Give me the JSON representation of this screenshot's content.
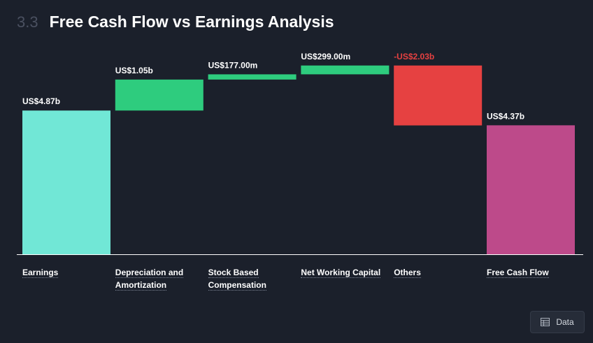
{
  "header": {
    "section_number": "3.3",
    "title": "Free Cash Flow vs Earnings Analysis"
  },
  "data_button": {
    "label": "Data",
    "icon": "table-icon"
  },
  "colors": {
    "background": "#1b202b",
    "earnings": "#71e7d6",
    "positive": "#2ecc7e",
    "negative": "#e64141",
    "free_cash_flow": "#bd4a8a",
    "negative_label": "#e64141"
  },
  "chart_data": {
    "type": "bar",
    "subtype": "waterfall",
    "unit": "US$ billions",
    "categories": [
      "Earnings",
      "Depreciation and Amortization",
      "Stock Based Compensation",
      "Net Working Capital",
      "Others",
      "Free Cash Flow"
    ],
    "category_lines": [
      [
        "Earnings"
      ],
      [
        "Depreciation and",
        "Amortization"
      ],
      [
        "Stock Based",
        "Compensation"
      ],
      [
        "Net Working Capital"
      ],
      [
        "Others"
      ],
      [
        "Free Cash Flow"
      ]
    ],
    "values": [
      4.87,
      1.05,
      0.177,
      0.299,
      -2.03,
      4.37
    ],
    "kinds": [
      "total",
      "delta",
      "delta",
      "delta",
      "delta",
      "total"
    ],
    "value_labels": [
      "US$4.87b",
      "US$1.05b",
      "US$177.00m",
      "US$299.00m",
      "-US$2.03b",
      "US$4.37b"
    ],
    "ylim": [
      0,
      6.4
    ]
  }
}
